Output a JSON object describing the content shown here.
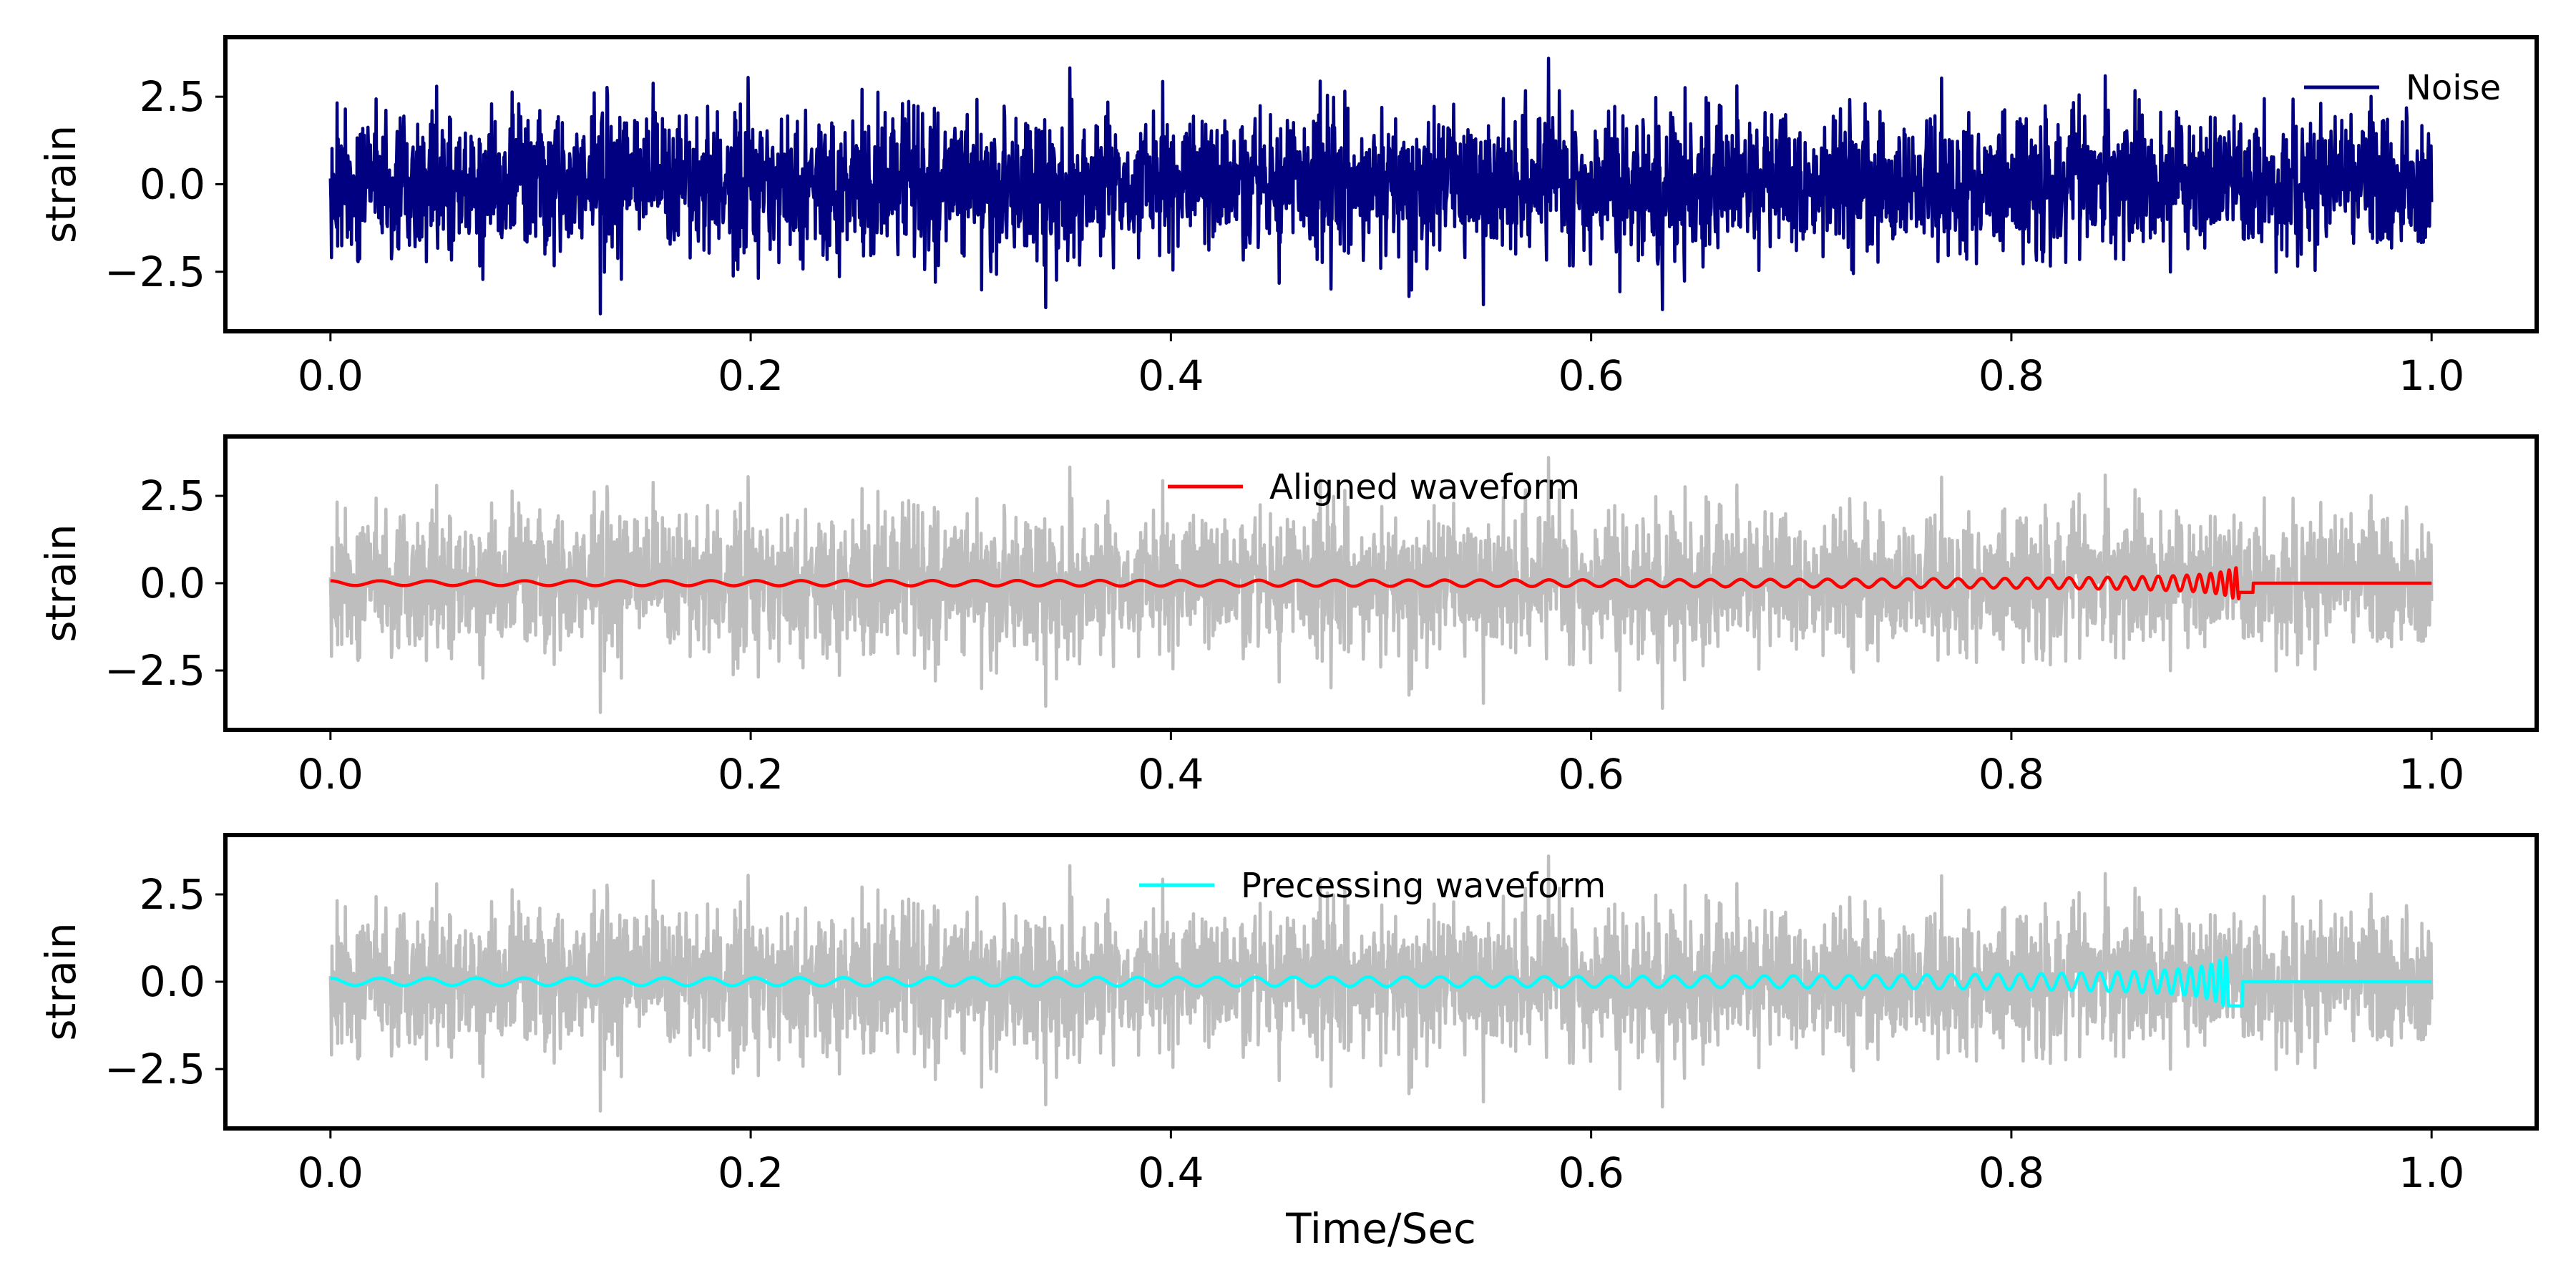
{
  "colors": {
    "noise": "#000080",
    "background_noise": "#bebebe",
    "aligned": "#ff0000",
    "precessing": "#00ffff",
    "axes": "#000000"
  },
  "chart_data": [
    {
      "type": "line",
      "ylabel": "strain",
      "xlabel": "",
      "xlim": [
        -0.05,
        1.05
      ],
      "ylim": [
        -4.2,
        4.2
      ],
      "xticks": [
        "0.0",
        "0.2",
        "0.4",
        "0.6",
        "0.8",
        "1.0"
      ],
      "yticks": [
        "2.5",
        "0.0",
        "−2.5"
      ],
      "legend": "top-right",
      "series": [
        {
          "name": "Noise",
          "kind": "noise",
          "x_range": [
            0.0,
            1.0
          ],
          "mean": 0.0,
          "std": 1.0,
          "y_min": -3.7,
          "y_max": 3.8
        }
      ]
    },
    {
      "type": "line",
      "ylabel": "strain",
      "xlabel": "",
      "xlim": [
        -0.05,
        1.05
      ],
      "ylim": [
        -4.2,
        4.2
      ],
      "xticks": [
        "0.0",
        "0.2",
        "0.4",
        "0.6",
        "0.8",
        "1.0"
      ],
      "yticks": [
        "2.5",
        "0.0",
        "−2.5"
      ],
      "legend": "top-center",
      "series": [
        {
          "kind": "noise-background",
          "x_range": [
            0.0,
            1.0
          ],
          "mean": 0.0,
          "std": 1.0,
          "y_min": -3.7,
          "y_max": 3.8
        },
        {
          "name": "Aligned waveform",
          "kind": "chirp",
          "x_range": [
            0.0,
            1.0
          ],
          "merger_time": 0.91,
          "peak_amplitude": 0.45,
          "zero_after": 0.915
        }
      ]
    },
    {
      "type": "line",
      "ylabel": "strain",
      "xlabel": "Time/Sec",
      "xlim": [
        -0.05,
        1.05
      ],
      "ylim": [
        -4.2,
        4.2
      ],
      "xticks": [
        "0.0",
        "0.2",
        "0.4",
        "0.6",
        "0.8",
        "1.0"
      ],
      "yticks": [
        "2.5",
        "0.0",
        "−2.5"
      ],
      "legend": "top-center",
      "series": [
        {
          "kind": "noise-background",
          "x_range": [
            0.0,
            1.0
          ],
          "mean": 0.0,
          "std": 1.0,
          "y_min": -3.7,
          "y_max": 3.8
        },
        {
          "name": "Precessing waveform",
          "kind": "chirp",
          "x_range": [
            0.0,
            1.0
          ],
          "merger_time": 0.905,
          "peak_amplitude": 0.7,
          "zero_after": 0.91
        }
      ]
    }
  ]
}
